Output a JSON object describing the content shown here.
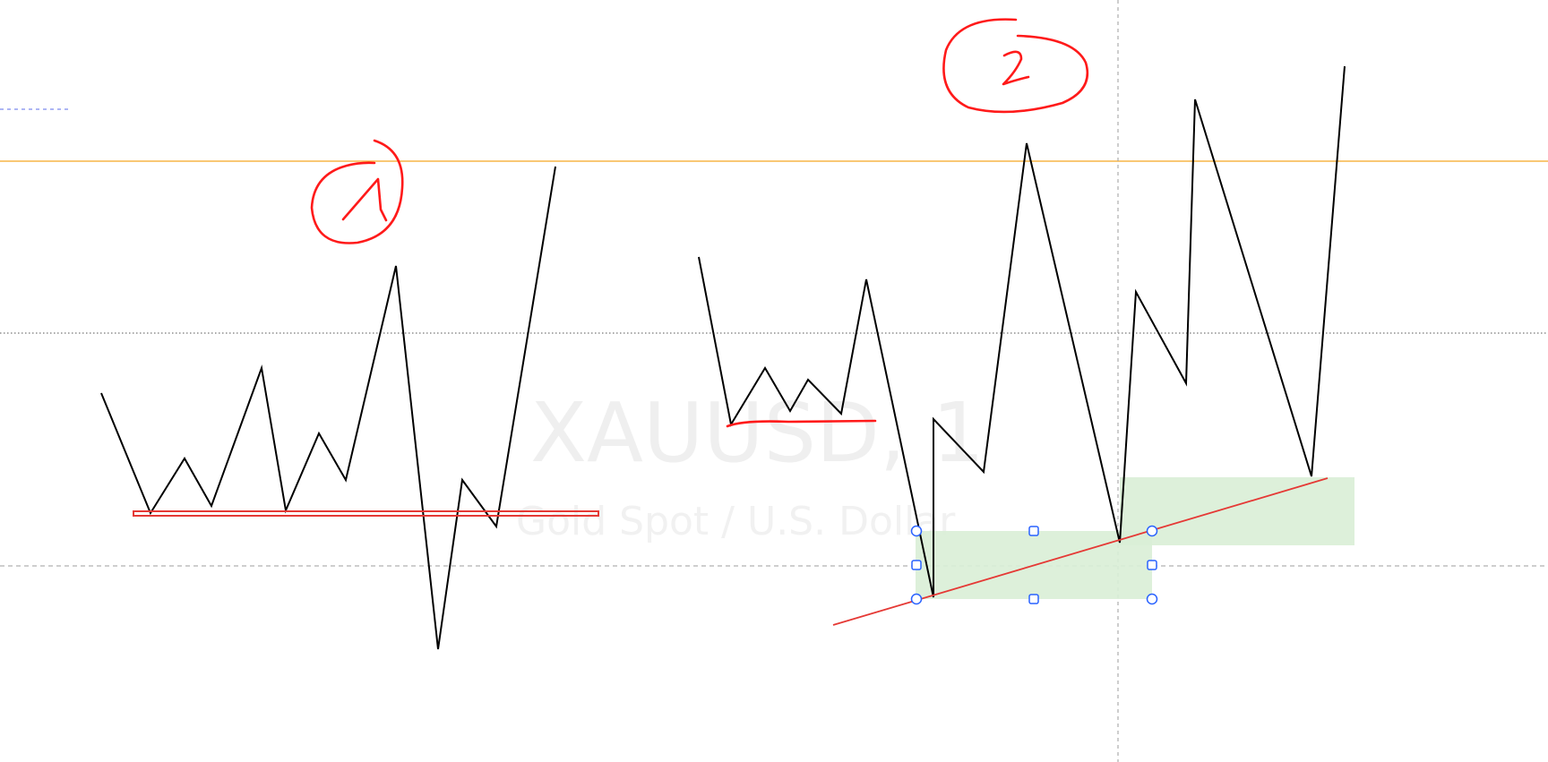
{
  "watermark": {
    "symbol": "XAUUSD, 1",
    "description": "Gold Spot / U.S. Dollar"
  },
  "annotations": {
    "pattern_1_label": "1",
    "pattern_2_label": "2"
  },
  "colors": {
    "background": "#ffffff",
    "price_line": "#000000",
    "resistance_line": "#f5a623",
    "ink": "#ff1a1a",
    "trendline": "#e53935",
    "zone_fill": "#d9eed6",
    "handle_stroke": "#2962ff",
    "crosshair": "#9e9e9e"
  },
  "icons": {
    "selection_handle": "circle-handle-icon",
    "resize_handle": "square-handle-icon"
  }
}
